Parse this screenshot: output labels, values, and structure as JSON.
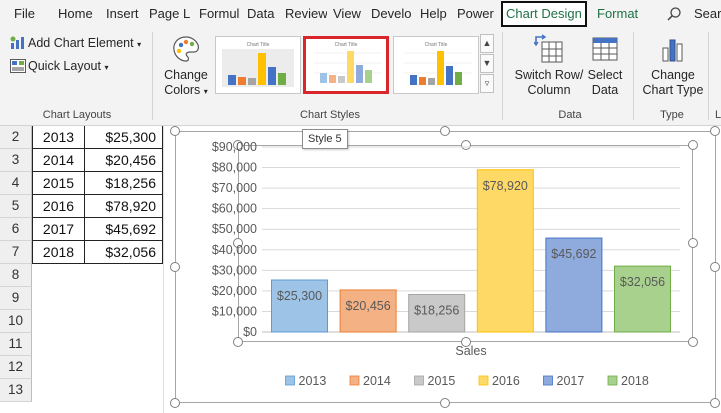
{
  "menu": {
    "tabs": [
      "File",
      "Home",
      "Insert",
      "Page L",
      "Formul",
      "Data",
      "Review",
      "View",
      "Develo",
      "Help",
      "Power"
    ],
    "active_tab": "Chart Design",
    "format_tab": "Format",
    "search_label": "Sear"
  },
  "ribbon": {
    "add_chart_element": "Add Chart Element",
    "quick_layout": "Quick Layout",
    "change_colors_line1": "Change",
    "change_colors_line2": "Colors",
    "switch_row_col_line1": "Switch Row/",
    "switch_row_col_line2": "Column",
    "select_data_line1": "Select",
    "select_data_line2": "Data",
    "change_chart_type_line1": "Change",
    "change_chart_type_line2": "Chart Type",
    "groups": {
      "chart_layouts": "Chart Layouts",
      "chart_styles": "Chart Styles",
      "data": "Data",
      "type": "Type",
      "loc_partial": "L"
    },
    "style_thumb_title": "Chart Title",
    "tooltip": "Style 5"
  },
  "sheet": {
    "row_numbers": [
      "2",
      "3",
      "4",
      "5",
      "6",
      "7",
      "8",
      "9",
      "10",
      "11",
      "12",
      "13"
    ],
    "rows": [
      {
        "year": "2013",
        "sales": "$25,300"
      },
      {
        "year": "2014",
        "sales": "$20,456"
      },
      {
        "year": "2015",
        "sales": "$18,256"
      },
      {
        "year": "2016",
        "sales": "$78,920"
      },
      {
        "year": "2017",
        "sales": "$45,692"
      },
      {
        "year": "2018",
        "sales": "$32,056"
      }
    ]
  },
  "colors": {
    "accent_green": "#1e7145",
    "selected_style_border": "#d9262c"
  },
  "chart_data": {
    "type": "bar",
    "categories": [
      "Sales"
    ],
    "xlabel": "Sales",
    "ylabel": "",
    "ylim": [
      0,
      90000
    ],
    "yticks": [
      "$0",
      "$10,000",
      "$20,000",
      "$30,000",
      "$40,000",
      "$50,000",
      "$60,000",
      "$70,000",
      "$80,000",
      "$90,000"
    ],
    "legend_position": "bottom",
    "grid": true,
    "series": [
      {
        "name": "2013",
        "value": 25300,
        "label": "$25,300",
        "color": "#9dc3e6",
        "stroke": "#5b9bd5"
      },
      {
        "name": "2014",
        "value": 20456,
        "label": "$20,456",
        "color": "#f4b183",
        "stroke": "#ed7d31"
      },
      {
        "name": "2015",
        "value": 18256,
        "label": "$18,256",
        "color": "#c9c9c9",
        "stroke": "#a5a5a5"
      },
      {
        "name": "2016",
        "value": 78920,
        "label": "$78,920",
        "color": "#ffd966",
        "stroke": "#ffc000"
      },
      {
        "name": "2017",
        "value": 45692,
        "label": "$45,692",
        "color": "#8faadc",
        "stroke": "#4472c4"
      },
      {
        "name": "2018",
        "value": 32056,
        "label": "$32,056",
        "color": "#a9d18e",
        "stroke": "#70ad47"
      }
    ]
  }
}
